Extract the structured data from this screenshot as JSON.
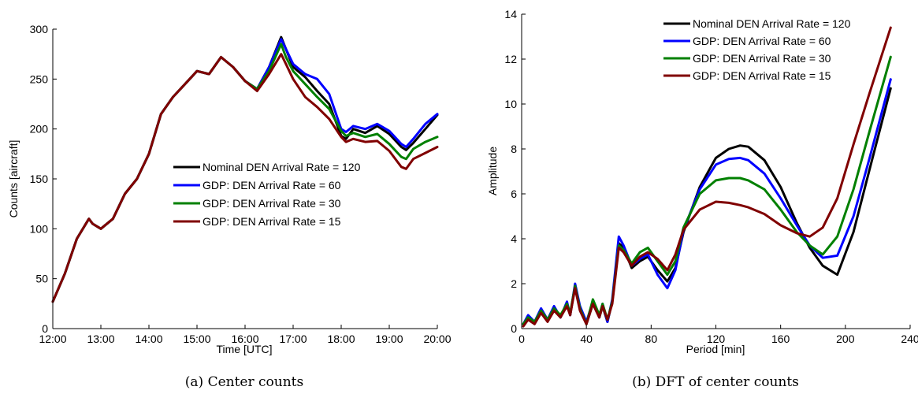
{
  "chart_data": [
    {
      "type": "line",
      "caption": "(a) Center counts",
      "xlabel": "Time [UTC]",
      "ylabel": "Counts [aircraft]",
      "xlim": [
        12,
        20
      ],
      "ylim": [
        0,
        300
      ],
      "xticks": [
        12,
        13,
        14,
        15,
        16,
        17,
        18,
        19,
        20
      ],
      "xtick_labels": [
        "12:00",
        "13:00",
        "14:00",
        "15:00",
        "16:00",
        "17:00",
        "18:00",
        "19:00",
        "20:00"
      ],
      "yticks": [
        0,
        50,
        100,
        150,
        200,
        250,
        300
      ],
      "ytick_labels": [
        "0",
        "50",
        "100",
        "150",
        "200",
        "250",
        "300"
      ],
      "legend_position": "center-right",
      "x": [
        12.0,
        12.25,
        12.5,
        12.75,
        12.83,
        13.0,
        13.25,
        13.5,
        13.75,
        14.0,
        14.25,
        14.5,
        14.75,
        15.0,
        15.25,
        15.5,
        15.75,
        16.0,
        16.25,
        16.5,
        16.75,
        16.85,
        17.0,
        17.25,
        17.5,
        17.75,
        18.0,
        18.1,
        18.25,
        18.5,
        18.75,
        19.0,
        19.25,
        19.35,
        19.5,
        19.75,
        20.0
      ],
      "series": [
        {
          "name": "Nominal DEN Arrival Rate = 120",
          "color": "#000000",
          "values": [
            27,
            55,
            90,
            110,
            105,
            100,
            110,
            135,
            150,
            175,
            215,
            232,
            245,
            258,
            255,
            272,
            262,
            248,
            240,
            262,
            292,
            280,
            262,
            252,
            238,
            225,
            193,
            190,
            200,
            196,
            203,
            195,
            182,
            179,
            186,
            200,
            214
          ]
        },
        {
          "name": "GDP: DEN Arrival Rate = 60",
          "color": "#0000ff",
          "values": [
            27,
            55,
            90,
            110,
            105,
            100,
            110,
            135,
            150,
            175,
            215,
            232,
            245,
            258,
            255,
            272,
            262,
            248,
            240,
            262,
            290,
            280,
            265,
            255,
            250,
            235,
            200,
            197,
            203,
            200,
            205,
            198,
            185,
            182,
            190,
            205,
            215
          ]
        },
        {
          "name": "GDP: DEN Arrival Rate = 30",
          "color": "#008000",
          "values": [
            27,
            55,
            90,
            110,
            105,
            100,
            110,
            135,
            150,
            175,
            215,
            232,
            245,
            258,
            255,
            272,
            262,
            248,
            240,
            258,
            285,
            272,
            258,
            245,
            232,
            220,
            198,
            193,
            196,
            192,
            195,
            185,
            172,
            170,
            180,
            187,
            192
          ]
        },
        {
          "name": "GDP: DEN Arrival Rate = 15",
          "color": "#800000",
          "values": [
            27,
            55,
            90,
            110,
            105,
            100,
            110,
            135,
            150,
            175,
            215,
            232,
            245,
            258,
            255,
            272,
            262,
            248,
            238,
            255,
            275,
            265,
            250,
            232,
            222,
            210,
            192,
            187,
            190,
            187,
            188,
            178,
            162,
            160,
            170,
            176,
            182
          ]
        }
      ]
    },
    {
      "type": "line",
      "caption": "(b) DFT of center counts",
      "xlabel": "Period [min]",
      "ylabel": "Amplitude",
      "xlim": [
        0,
        240
      ],
      "ylim": [
        0,
        14
      ],
      "xticks": [
        0,
        40,
        80,
        120,
        160,
        200,
        240
      ],
      "xtick_labels": [
        "0",
        "40",
        "80",
        "120",
        "160",
        "200",
        "240"
      ],
      "yticks": [
        0,
        2,
        4,
        6,
        8,
        10,
        12,
        14
      ],
      "ytick_labels": [
        "0",
        "2",
        "4",
        "6",
        "8",
        "10",
        "12",
        "14"
      ],
      "legend_position": "top-right",
      "x": [
        1,
        4,
        8,
        12,
        16,
        20,
        24,
        28,
        30,
        33,
        36,
        40,
        44,
        48,
        50,
        53,
        56,
        60,
        63,
        68,
        73,
        78,
        84,
        90,
        95,
        100,
        110,
        120,
        128,
        135,
        140,
        150,
        160,
        170,
        178,
        186,
        195,
        205,
        215,
        228
      ],
      "series": [
        {
          "name": "Nominal DEN Arrival Rate = 120",
          "color": "#000000",
          "values": [
            0.2,
            0.5,
            0.3,
            0.8,
            0.4,
            0.9,
            0.5,
            1.1,
            0.6,
            1.9,
            0.9,
            0.2,
            1.1,
            0.5,
            1.0,
            0.3,
            1.2,
            3.8,
            3.6,
            2.7,
            3.0,
            3.2,
            2.6,
            2.1,
            2.7,
            4.3,
            6.3,
            7.6,
            8.0,
            8.15,
            8.1,
            7.5,
            6.3,
            4.7,
            3.6,
            2.8,
            2.4,
            4.3,
            7.1,
            10.7
          ]
        },
        {
          "name": "GDP: DEN Arrival Rate = 60",
          "color": "#0000ff",
          "values": [
            0.2,
            0.6,
            0.3,
            0.9,
            0.4,
            1.0,
            0.5,
            1.2,
            0.6,
            2.0,
            1.0,
            0.3,
            1.2,
            0.5,
            1.1,
            0.3,
            1.3,
            4.1,
            3.7,
            2.8,
            3.1,
            3.3,
            2.4,
            1.8,
            2.6,
            4.4,
            6.2,
            7.3,
            7.55,
            7.6,
            7.5,
            6.9,
            5.8,
            4.6,
            3.7,
            3.15,
            3.25,
            5.0,
            7.6,
            11.1
          ]
        },
        {
          "name": "GDP: DEN Arrival Rate = 30",
          "color": "#008000",
          "values": [
            0.2,
            0.5,
            0.3,
            0.8,
            0.4,
            0.9,
            0.6,
            1.1,
            0.7,
            1.9,
            0.9,
            0.2,
            1.3,
            0.6,
            1.1,
            0.4,
            1.2,
            3.7,
            3.5,
            2.9,
            3.4,
            3.6,
            3.0,
            2.4,
            3.0,
            4.5,
            6.0,
            6.6,
            6.7,
            6.7,
            6.6,
            6.2,
            5.3,
            4.3,
            3.7,
            3.3,
            4.1,
            6.2,
            8.8,
            12.1
          ]
        },
        {
          "name": "GDP: DEN Arrival Rate = 15",
          "color": "#800000",
          "values": [
            0.1,
            0.4,
            0.2,
            0.7,
            0.3,
            0.8,
            0.5,
            1.0,
            0.6,
            1.8,
            0.8,
            0.2,
            1.1,
            0.5,
            1.0,
            0.4,
            1.1,
            3.6,
            3.4,
            2.8,
            3.2,
            3.4,
            3.1,
            2.6,
            3.3,
            4.4,
            5.3,
            5.65,
            5.6,
            5.5,
            5.4,
            5.1,
            4.6,
            4.25,
            4.1,
            4.5,
            5.8,
            8.2,
            10.5,
            13.4
          ]
        }
      ]
    }
  ]
}
